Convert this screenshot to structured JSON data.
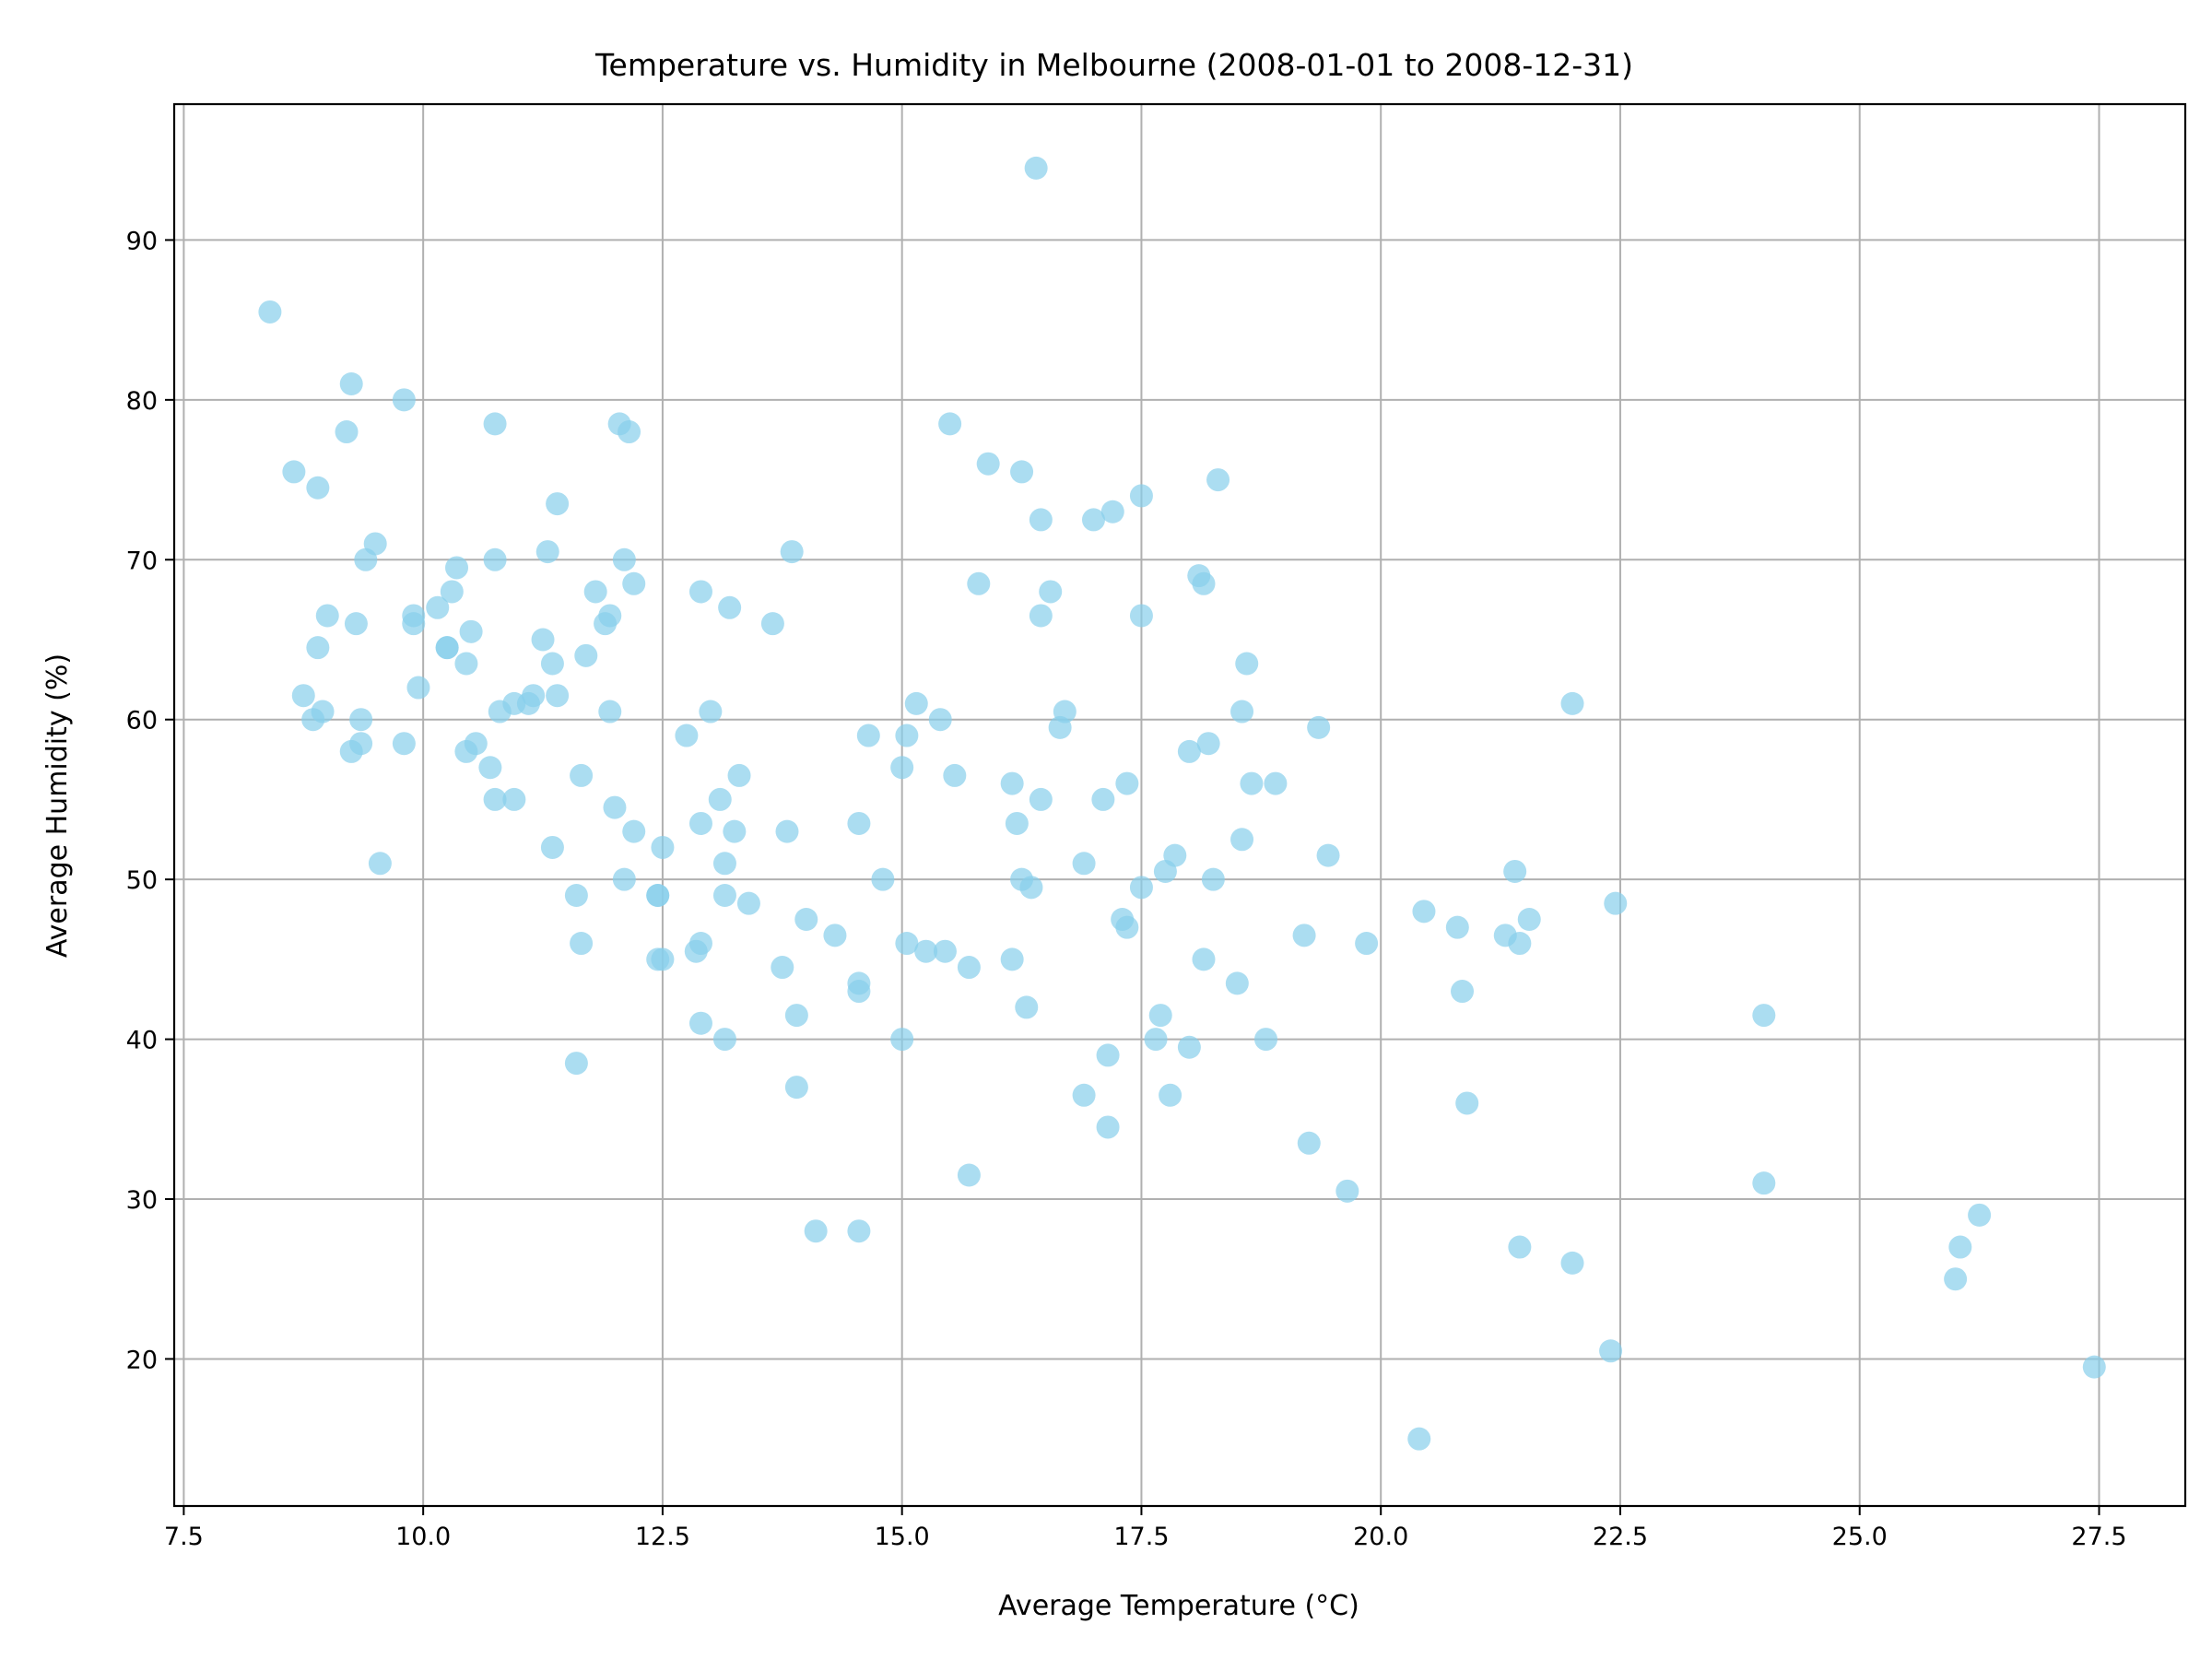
{
  "chart_data": {
    "type": "scatter",
    "title": "Temperature vs. Humidity in Melbourne (2008-01-01 to 2008-12-31)",
    "xlabel": "Average Temperature (°C)",
    "ylabel": "Average Humidity (%)",
    "xlim": [
      7.4,
      28.4
    ],
    "ylim": [
      10.8,
      98.5
    ],
    "xticks": [
      "7.5",
      "10.0",
      "12.5",
      "15.0",
      "17.5",
      "20.0",
      "22.5",
      "25.0",
      "27.5"
    ],
    "yticks": [
      "20",
      "30",
      "40",
      "50",
      "60",
      "70",
      "80",
      "90"
    ],
    "xtick_values": [
      7.5,
      10.0,
      12.5,
      15.0,
      17.5,
      20.0,
      22.5,
      25.0,
      27.5
    ],
    "ytick_values": [
      20,
      30,
      40,
      50,
      60,
      70,
      80,
      90
    ],
    "grid": true,
    "legend": "none",
    "marker_color": "#87ceeb",
    "marker_alpha": 0.7,
    "points": [
      [
        8.4,
        85.5
      ],
      [
        8.65,
        75.5
      ],
      [
        8.75,
        61.5
      ],
      [
        8.85,
        60.0
      ],
      [
        8.9,
        74.5
      ],
      [
        8.9,
        64.5
      ],
      [
        8.95,
        60.5
      ],
      [
        9.0,
        66.5
      ],
      [
        9.2,
        78.0
      ],
      [
        9.25,
        81.0
      ],
      [
        9.25,
        58.0
      ],
      [
        9.3,
        66.0
      ],
      [
        9.35,
        60.0
      ],
      [
        9.35,
        58.5
      ],
      [
        9.4,
        70.0
      ],
      [
        9.5,
        71.0
      ],
      [
        9.55,
        51.0
      ],
      [
        9.8,
        80.0
      ],
      [
        9.8,
        58.5
      ],
      [
        9.9,
        66.5
      ],
      [
        9.9,
        66.0
      ],
      [
        9.95,
        62.0
      ],
      [
        10.15,
        67.0
      ],
      [
        10.25,
        64.5
      ],
      [
        10.25,
        64.5
      ],
      [
        10.3,
        68.0
      ],
      [
        10.35,
        69.5
      ],
      [
        10.45,
        63.5
      ],
      [
        10.45,
        58.0
      ],
      [
        10.5,
        65.5
      ],
      [
        10.55,
        58.5
      ],
      [
        10.7,
        57.0
      ],
      [
        10.75,
        78.5
      ],
      [
        10.75,
        70.0
      ],
      [
        10.75,
        55.0
      ],
      [
        10.8,
        60.5
      ],
      [
        10.95,
        61.0
      ],
      [
        10.95,
        55.0
      ],
      [
        11.1,
        61.0
      ],
      [
        11.15,
        61.5
      ],
      [
        11.25,
        65.0
      ],
      [
        11.3,
        70.5
      ],
      [
        11.35,
        63.5
      ],
      [
        11.35,
        52.0
      ],
      [
        11.4,
        73.5
      ],
      [
        11.4,
        61.5
      ],
      [
        11.6,
        49.0
      ],
      [
        11.6,
        38.5
      ],
      [
        11.65,
        56.5
      ],
      [
        11.65,
        46.0
      ],
      [
        11.7,
        64.0
      ],
      [
        11.8,
        68.0
      ],
      [
        11.9,
        66.0
      ],
      [
        11.95,
        66.5
      ],
      [
        11.95,
        60.5
      ],
      [
        12.0,
        54.5
      ],
      [
        12.05,
        78.5
      ],
      [
        12.1,
        70.0
      ],
      [
        12.1,
        50.0
      ],
      [
        12.15,
        78.0
      ],
      [
        12.2,
        68.5
      ],
      [
        12.2,
        53.0
      ],
      [
        12.45,
        49.0
      ],
      [
        12.45,
        49.0
      ],
      [
        12.45,
        45.0
      ],
      [
        12.5,
        52.0
      ],
      [
        12.5,
        45.0
      ],
      [
        12.75,
        59.0
      ],
      [
        12.85,
        45.5
      ],
      [
        12.9,
        68.0
      ],
      [
        12.9,
        53.5
      ],
      [
        12.9,
        46.0
      ],
      [
        12.9,
        41.0
      ],
      [
        13.0,
        60.5
      ],
      [
        13.1,
        55.0
      ],
      [
        13.15,
        51.0
      ],
      [
        13.15,
        49.0
      ],
      [
        13.15,
        40.0
      ],
      [
        13.2,
        67.0
      ],
      [
        13.25,
        53.0
      ],
      [
        13.3,
        56.5
      ],
      [
        13.4,
        48.5
      ],
      [
        13.65,
        66.0
      ],
      [
        13.75,
        44.5
      ],
      [
        13.8,
        53.0
      ],
      [
        13.85,
        70.5
      ],
      [
        13.9,
        41.5
      ],
      [
        13.9,
        37.0
      ],
      [
        14.0,
        47.5
      ],
      [
        14.1,
        28.0
      ],
      [
        14.3,
        46.5
      ],
      [
        14.55,
        53.5
      ],
      [
        14.55,
        43.5
      ],
      [
        14.55,
        43.0
      ],
      [
        14.55,
        28.0
      ],
      [
        14.65,
        59.0
      ],
      [
        14.8,
        50.0
      ],
      [
        15.0,
        57.0
      ],
      [
        15.0,
        40.0
      ],
      [
        15.05,
        59.0
      ],
      [
        15.05,
        46.0
      ],
      [
        15.15,
        61.0
      ],
      [
        15.25,
        45.5
      ],
      [
        15.4,
        60.0
      ],
      [
        15.45,
        45.5
      ],
      [
        15.5,
        78.5
      ],
      [
        15.55,
        56.5
      ],
      [
        15.7,
        44.5
      ],
      [
        15.7,
        31.5
      ],
      [
        15.8,
        68.5
      ],
      [
        15.9,
        76.0
      ],
      [
        16.15,
        56.0
      ],
      [
        16.15,
        45.0
      ],
      [
        16.2,
        53.5
      ],
      [
        16.25,
        75.5
      ],
      [
        16.25,
        50.0
      ],
      [
        16.3,
        42.0
      ],
      [
        16.35,
        49.5
      ],
      [
        16.4,
        94.5
      ],
      [
        16.45,
        72.5
      ],
      [
        16.45,
        66.5
      ],
      [
        16.45,
        55.0
      ],
      [
        16.55,
        68.0
      ],
      [
        16.65,
        59.5
      ],
      [
        16.7,
        60.5
      ],
      [
        16.9,
        51.0
      ],
      [
        16.9,
        36.5
      ],
      [
        17.0,
        72.5
      ],
      [
        17.1,
        55.0
      ],
      [
        17.15,
        39.0
      ],
      [
        17.15,
        34.5
      ],
      [
        17.2,
        73.0
      ],
      [
        17.3,
        47.5
      ],
      [
        17.35,
        56.0
      ],
      [
        17.35,
        47.0
      ],
      [
        17.5,
        74.0
      ],
      [
        17.5,
        66.5
      ],
      [
        17.5,
        49.5
      ],
      [
        17.65,
        40.0
      ],
      [
        17.7,
        41.5
      ],
      [
        17.75,
        50.5
      ],
      [
        17.8,
        36.5
      ],
      [
        17.85,
        51.5
      ],
      [
        18.0,
        58.0
      ],
      [
        18.0,
        39.5
      ],
      [
        18.1,
        69.0
      ],
      [
        18.15,
        68.5
      ],
      [
        18.15,
        45.0
      ],
      [
        18.2,
        58.5
      ],
      [
        18.25,
        50.0
      ],
      [
        18.3,
        75.0
      ],
      [
        18.5,
        43.5
      ],
      [
        18.55,
        60.5
      ],
      [
        18.55,
        52.5
      ],
      [
        18.6,
        63.5
      ],
      [
        18.65,
        56.0
      ],
      [
        18.8,
        40.0
      ],
      [
        18.9,
        56.0
      ],
      [
        19.2,
        46.5
      ],
      [
        19.25,
        33.5
      ],
      [
        19.35,
        59.5
      ],
      [
        19.45,
        51.5
      ],
      [
        19.65,
        30.5
      ],
      [
        19.85,
        46.0
      ],
      [
        20.4,
        15.0
      ],
      [
        20.45,
        48.0
      ],
      [
        20.8,
        47.0
      ],
      [
        20.85,
        43.0
      ],
      [
        20.9,
        36.0
      ],
      [
        21.3,
        46.5
      ],
      [
        21.4,
        50.5
      ],
      [
        21.45,
        46.0
      ],
      [
        21.45,
        27.0
      ],
      [
        21.55,
        47.5
      ],
      [
        22.0,
        61.0
      ],
      [
        22.0,
        26.0
      ],
      [
        22.4,
        20.5
      ],
      [
        22.45,
        48.5
      ],
      [
        24.0,
        41.5
      ],
      [
        24.0,
        31.0
      ],
      [
        26.0,
        25.0
      ],
      [
        26.05,
        27.0
      ],
      [
        26.25,
        29.0
      ],
      [
        27.45,
        19.5
      ]
    ]
  }
}
